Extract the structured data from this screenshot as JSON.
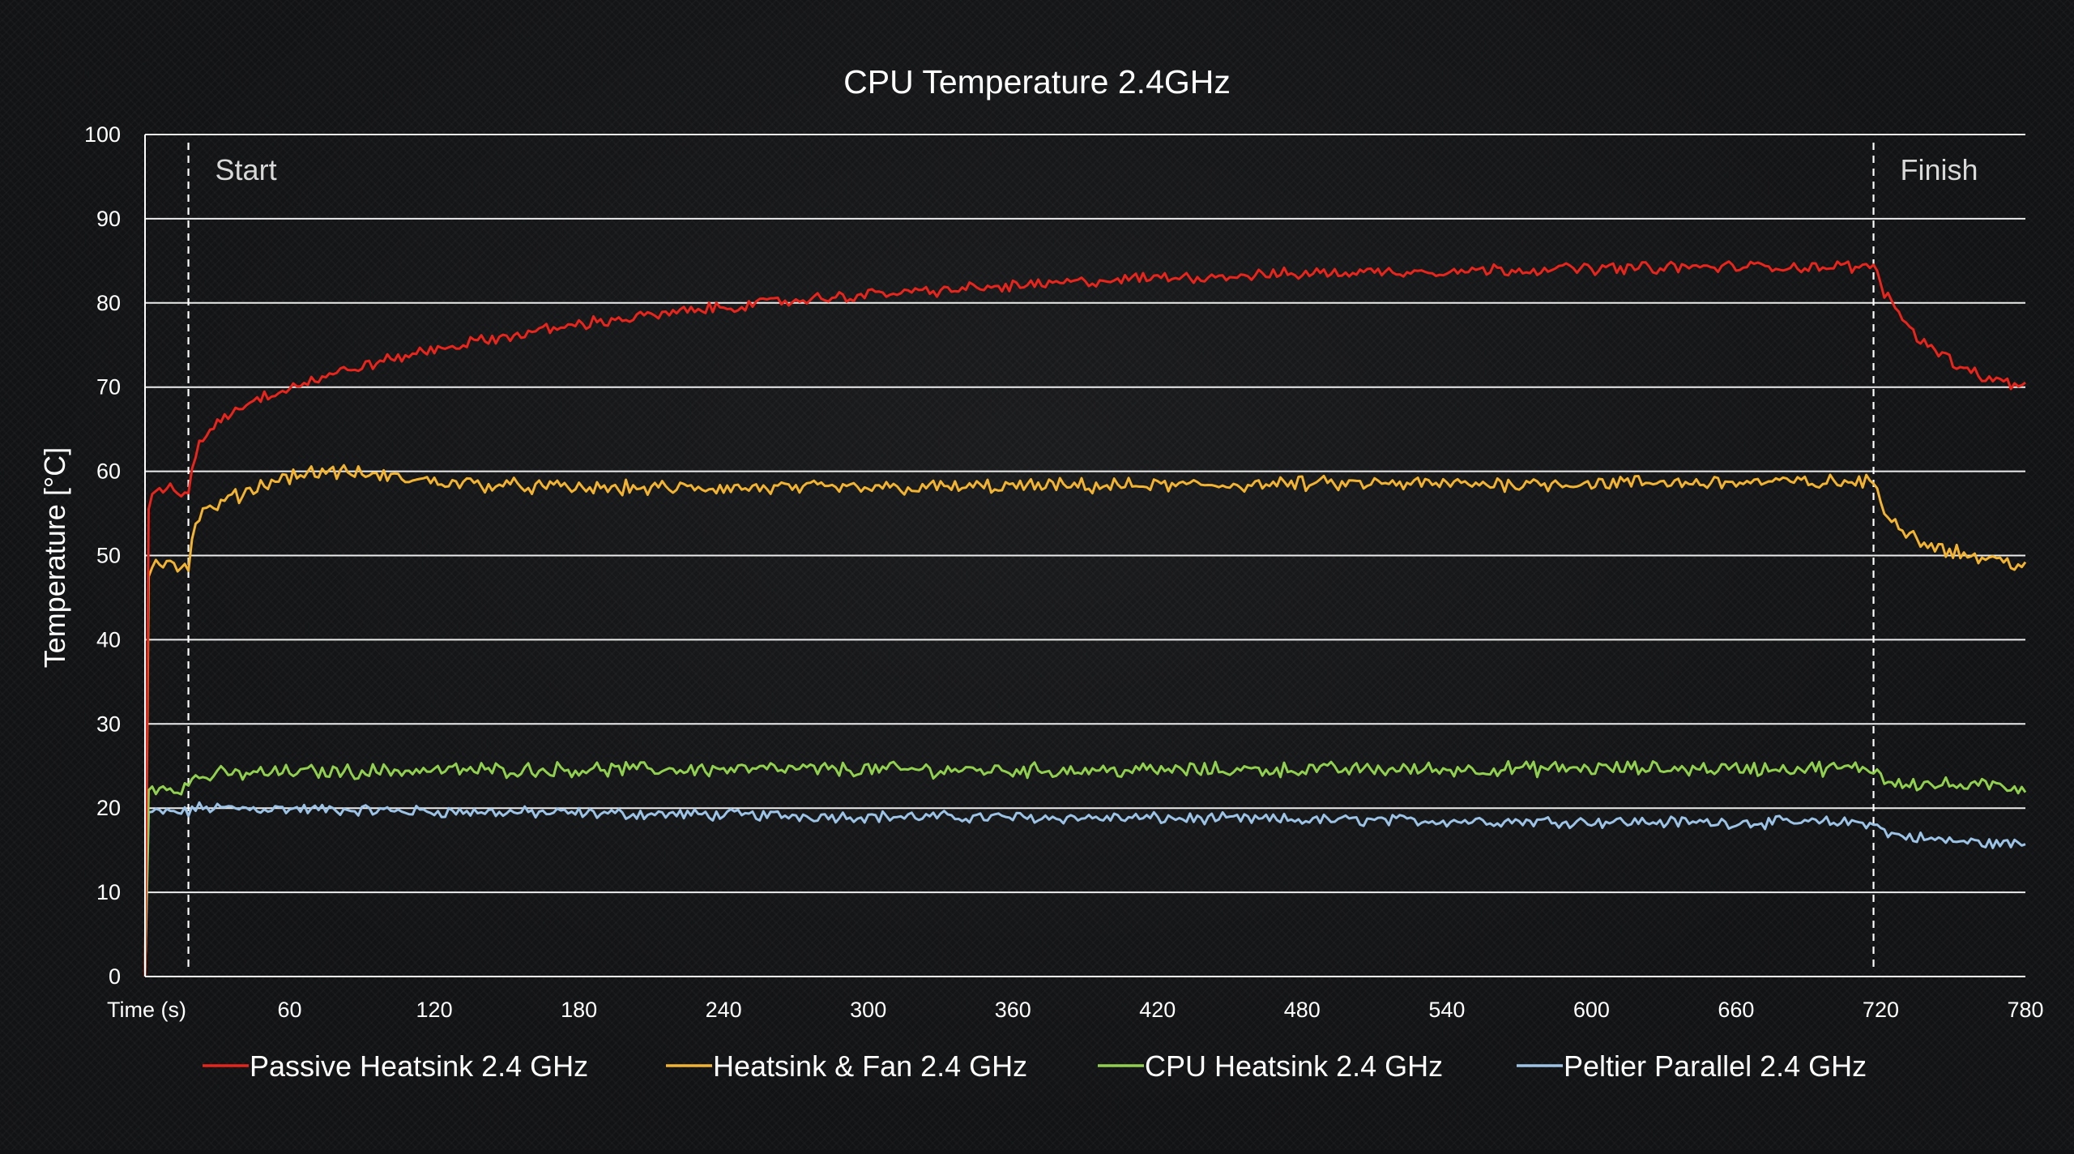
{
  "chart_data": {
    "type": "line",
    "title": "CPU Temperature 2.4GHz",
    "xlabel": "Time (s)",
    "ylabel": "Temperature [°C]",
    "xlim": [
      0,
      780
    ],
    "ylim": [
      0,
      100
    ],
    "x_ticks": [
      {
        "value": 60,
        "label": "60"
      },
      {
        "value": 120,
        "label": "120"
      },
      {
        "value": 180,
        "label": "180"
      },
      {
        "value": 240,
        "label": "240"
      },
      {
        "value": 300,
        "label": "300"
      },
      {
        "value": 360,
        "label": "360"
      },
      {
        "value": 420,
        "label": "420"
      },
      {
        "value": 480,
        "label": "480"
      },
      {
        "value": 540,
        "label": "540"
      },
      {
        "value": 600,
        "label": "600"
      },
      {
        "value": 660,
        "label": "660"
      },
      {
        "value": 720,
        "label": "720"
      },
      {
        "value": 780,
        "label": "780"
      }
    ],
    "y_ticks": [
      {
        "value": 0,
        "label": "0"
      },
      {
        "value": 10,
        "label": "10"
      },
      {
        "value": 20,
        "label": "20"
      },
      {
        "value": 30,
        "label": "30"
      },
      {
        "value": 40,
        "label": "40"
      },
      {
        "value": 50,
        "label": "50"
      },
      {
        "value": 60,
        "label": "60"
      },
      {
        "value": 70,
        "label": "70"
      },
      {
        "value": 80,
        "label": "80"
      },
      {
        "value": 90,
        "label": "90"
      },
      {
        "value": 100,
        "label": "100"
      }
    ],
    "grid": "horizontal",
    "legend_position": "bottom",
    "markers": [
      {
        "label": "Start",
        "x": 18
      },
      {
        "label": "Finish",
        "x": 717
      }
    ],
    "series": [
      {
        "name": "Passive Heatsink 2.4 GHz",
        "color": "#e8251c",
        "x": [
          0,
          1,
          3,
          10,
          18,
          19,
          22,
          30,
          45,
          60,
          90,
          120,
          150,
          180,
          210,
          240,
          270,
          300,
          330,
          360,
          390,
          420,
          450,
          480,
          510,
          540,
          570,
          600,
          630,
          660,
          690,
          717,
          722,
          735,
          750,
          765,
          780
        ],
        "y": [
          0,
          55,
          57,
          58,
          57,
          60,
          63,
          66,
          68.5,
          70,
          72.5,
          74.5,
          76,
          77.5,
          78.5,
          79.5,
          80.3,
          81,
          81.5,
          82,
          82.5,
          83,
          83.2,
          83.5,
          83.7,
          83.8,
          84,
          84.1,
          84.2,
          84.3,
          84.3,
          84.3,
          81,
          76,
          73,
          71,
          70
        ]
      },
      {
        "name": "Heatsink & Fan 2.4 GHz",
        "color": "#f2b431",
        "x": [
          0,
          1,
          3,
          10,
          18,
          19,
          22,
          30,
          45,
          60,
          75,
          90,
          105,
          120,
          150,
          180,
          240,
          300,
          360,
          420,
          480,
          540,
          600,
          660,
          717,
          722,
          735,
          750,
          765,
          780
        ],
        "y": [
          0,
          47,
          49,
          49.5,
          48,
          52,
          54.5,
          56,
          58,
          59.5,
          60,
          59.7,
          59.2,
          58.8,
          58.3,
          58,
          58,
          58,
          58.2,
          58.3,
          58.5,
          58.5,
          58.6,
          58.7,
          58.7,
          55,
          52,
          50.5,
          49.5,
          49
        ]
      },
      {
        "name": "CPU Heatsink 2.4 GHz",
        "color": "#92d050",
        "x": [
          0,
          1,
          3,
          18,
          19,
          30,
          60,
          120,
          180,
          240,
          300,
          360,
          420,
          480,
          540,
          600,
          660,
          717,
          722,
          740,
          760,
          780
        ],
        "y": [
          0,
          22,
          22.5,
          22.5,
          23.5,
          24,
          24.3,
          24.5,
          24.6,
          24.6,
          24.6,
          24.5,
          24.5,
          24.6,
          24.6,
          24.7,
          24.7,
          24.7,
          23.3,
          22.8,
          22.6,
          22.5
        ]
      },
      {
        "name": "Peltier Parallel 2.4 GHz",
        "color": "#9dc3e6",
        "x": [
          0,
          1,
          3,
          18,
          19,
          30,
          60,
          120,
          180,
          240,
          300,
          360,
          420,
          480,
          540,
          600,
          660,
          717,
          722,
          740,
          760,
          780
        ],
        "y": [
          0,
          19.5,
          19.5,
          19.5,
          20,
          20,
          19.9,
          19.6,
          19.4,
          19.2,
          19,
          18.9,
          18.8,
          18.6,
          18.5,
          18.4,
          18.3,
          18.3,
          17,
          16.3,
          15.9,
          15.7
        ]
      }
    ]
  }
}
